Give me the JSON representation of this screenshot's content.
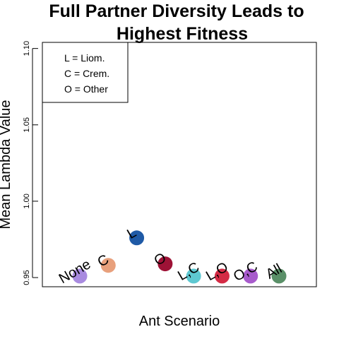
{
  "chart_data": {
    "type": "scatter",
    "title": [
      "Full Partner Diversity Leads to",
      "Highest Fitness"
    ],
    "xlabel": "Ant Scenario",
    "ylabel": "Mean Lambda Value",
    "ylim": [
      0.944,
      1.104
    ],
    "yticks": [
      0.95,
      1.0,
      1.05,
      1.1
    ],
    "ytick_labels": [
      "0.95",
      "1.00",
      "1.05",
      "1.10"
    ],
    "grid": false,
    "legend": {
      "placement": "top-left",
      "entries": [
        "L = Liom.",
        "C = Crem.",
        "O = Other"
      ]
    },
    "points": [
      {
        "label": "None",
        "value": 0.951,
        "color": "#a98be0"
      },
      {
        "label": "C",
        "value": 0.958,
        "color": "#e8a07c"
      },
      {
        "label": "L",
        "value": 0.976,
        "color": "#1f5aa6"
      },
      {
        "label": "O",
        "value": 0.959,
        "color": "#9e1236"
      },
      {
        "label": "L,C",
        "value": 0.951,
        "color": "#5ec8d1"
      },
      {
        "label": "L,O",
        "value": 0.951,
        "color": "#d42b45"
      },
      {
        "label": "O,C",
        "value": 0.951,
        "color": "#a85bcc"
      },
      {
        "label": "All",
        "value": 0.951,
        "color": "#5a9068"
      }
    ]
  }
}
